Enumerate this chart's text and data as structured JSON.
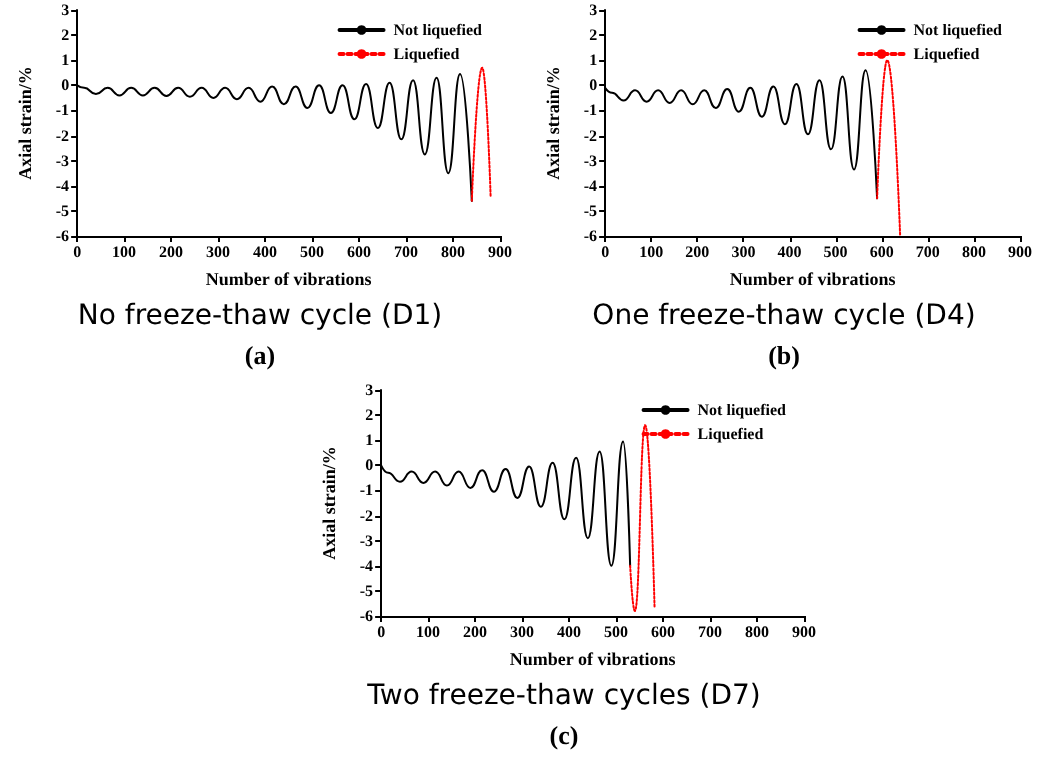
{
  "chart_data": [
    {
      "type": "line",
      "title": "No freeze-thaw cycle (D1)",
      "subtitle": "(a)",
      "xlabel": "Number of vibrations",
      "ylabel": "Axial strain/%",
      "xlim": [
        0,
        900
      ],
      "xticks": [
        0,
        100,
        200,
        300,
        400,
        500,
        600,
        700,
        800,
        900
      ],
      "ylim": [
        -6,
        3
      ],
      "yticks": [
        -6,
        -5,
        -4,
        -3,
        -2,
        -1,
        0,
        1,
        2,
        3
      ],
      "grid": false,
      "legend": "top right",
      "series": [
        {
          "name": "Not liquefied",
          "color": "#000000",
          "line_style": "solid",
          "x": [
            0,
            15,
            40,
            65,
            90,
            115,
            140,
            165,
            190,
            215,
            240,
            265,
            290,
            315,
            340,
            365,
            390,
            415,
            440,
            465,
            490,
            515,
            540,
            565,
            590,
            615,
            640,
            665,
            690,
            715,
            740,
            765,
            790,
            815,
            840
          ],
          "values": [
            0,
            -0.1,
            -0.35,
            -0.1,
            -0.4,
            -0.1,
            -0.4,
            -0.1,
            -0.42,
            -0.1,
            -0.45,
            -0.1,
            -0.5,
            -0.1,
            -0.55,
            -0.1,
            -0.65,
            -0.05,
            -0.75,
            -0.05,
            -0.9,
            0,
            -1.1,
            0,
            -1.35,
            0.05,
            -1.7,
            0.1,
            -2.15,
            0.2,
            -2.75,
            0.3,
            -3.5,
            0.45,
            -4.6
          ]
        },
        {
          "name": "Liquefied",
          "color": "#ff0000",
          "line_style": "dotted",
          "x": [
            840,
            862,
            880
          ],
          "values": [
            -4.6,
            0.7,
            -4.4
          ]
        }
      ]
    },
    {
      "type": "line",
      "title": "One freeze-thaw cycle (D4)",
      "subtitle": "(b)",
      "xlabel": "Number of vibrations",
      "ylabel": "Axial strain/%",
      "xlim": [
        0,
        900
      ],
      "xticks": [
        0,
        100,
        200,
        300,
        400,
        500,
        600,
        700,
        800,
        900
      ],
      "ylim": [
        -6,
        3
      ],
      "yticks": [
        -6,
        -5,
        -4,
        -3,
        -2,
        -1,
        0,
        1,
        2,
        3
      ],
      "grid": false,
      "legend": "top right",
      "series": [
        {
          "name": "Not liquefied",
          "color": "#000000",
          "line_style": "solid",
          "x": [
            0,
            15,
            40,
            65,
            90,
            115,
            140,
            165,
            190,
            215,
            240,
            265,
            290,
            315,
            340,
            365,
            390,
            415,
            440,
            465,
            490,
            515,
            540,
            565,
            590
          ],
          "values": [
            -0.1,
            -0.3,
            -0.6,
            -0.2,
            -0.65,
            -0.2,
            -0.7,
            -0.2,
            -0.75,
            -0.2,
            -0.9,
            -0.15,
            -1.05,
            -0.1,
            -1.25,
            -0.05,
            -1.55,
            0.05,
            -1.95,
            0.2,
            -2.55,
            0.35,
            -3.35,
            0.6,
            -4.5
          ]
        },
        {
          "name": "Liquefied",
          "color": "#ff0000",
          "line_style": "dotted",
          "x": [
            590,
            612,
            640
          ],
          "values": [
            -4.5,
            1,
            -6
          ]
        }
      ]
    },
    {
      "type": "line",
      "title": "Two freeze-thaw cycles (D7)",
      "subtitle": "(c)",
      "xlabel": "Number of vibrations",
      "ylabel": "Axial strain/%",
      "xlim": [
        0,
        900
      ],
      "xticks": [
        0,
        100,
        200,
        300,
        400,
        500,
        600,
        700,
        800,
        900
      ],
      "ylim": [
        -6,
        3
      ],
      "yticks": [
        -6,
        -5,
        -4,
        -3,
        -2,
        -1,
        0,
        1,
        2,
        3
      ],
      "grid": false,
      "legend": "top right",
      "series": [
        {
          "name": "Not liquefied",
          "color": "#000000",
          "line_style": "solid",
          "x": [
            0,
            15,
            40,
            65,
            90,
            115,
            140,
            165,
            190,
            215,
            240,
            265,
            290,
            315,
            340,
            365,
            390,
            415,
            440,
            465,
            490,
            515,
            530
          ],
          "values": [
            0,
            -0.3,
            -0.65,
            -0.25,
            -0.7,
            -0.25,
            -0.8,
            -0.25,
            -0.9,
            -0.2,
            -1.05,
            -0.15,
            -1.3,
            -0.05,
            -1.65,
            0.1,
            -2.15,
            0.3,
            -2.9,
            0.55,
            -4,
            0.95,
            -4
          ]
        },
        {
          "name": "Liquefied",
          "color": "#ff0000",
          "line_style": "dotted",
          "x": [
            530,
            540,
            562,
            582
          ],
          "values": [
            -4,
            -5.8,
            1.6,
            -5.7
          ]
        }
      ]
    }
  ]
}
